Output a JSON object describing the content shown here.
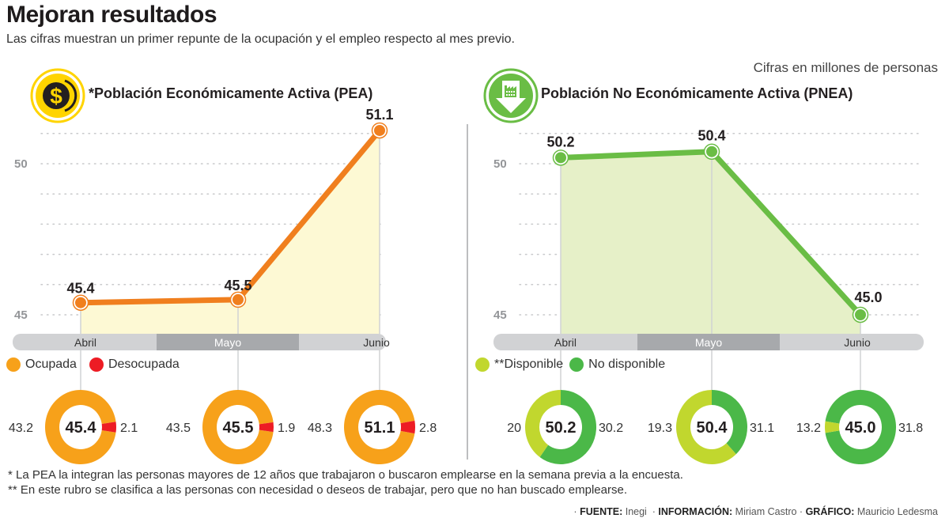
{
  "header": {
    "title": "Mejoran resultados",
    "subtitle": "Las cifras muestran un primer repunte de la ocupación y el empleo respecto al mes previo.",
    "units_note": "Cifras en millones de personas"
  },
  "chart_data": [
    {
      "type": "area",
      "id": "pea",
      "title": "*Población Económicamente Activa (PEA)",
      "icon": "dollar-coin-icon",
      "categories": [
        "Abril",
        "Mayo",
        "Junio"
      ],
      "values": [
        45.4,
        45.5,
        51.1
      ],
      "value_labels": [
        "45.4",
        "45.5",
        "51.1"
      ],
      "ylim": [
        45,
        51
      ],
      "yticks": [
        45,
        50
      ],
      "ytick_labels": [
        "45",
        "50"
      ],
      "grid": true,
      "line_color": "#f07f1e",
      "fill_color": "#fdf9d4",
      "highlighted_category": "Mayo"
    },
    {
      "type": "area",
      "id": "pnea",
      "title": "Población No Económicamente Activa (PNEA)",
      "icon": "factory-down-arrow-icon",
      "categories": [
        "Abril",
        "Mayo",
        "Junio"
      ],
      "values": [
        50.2,
        50.4,
        45.0
      ],
      "value_labels": [
        "50.2",
        "50.4",
        "45.0"
      ],
      "ylim": [
        45,
        51
      ],
      "yticks": [
        45,
        50
      ],
      "ytick_labels": [
        "45",
        "50"
      ],
      "grid": true,
      "line_color": "#6abd45",
      "fill_color": "#e6f0c8",
      "highlighted_category": "Mayo"
    },
    {
      "type": "pie",
      "id": "pea-donuts",
      "legend": [
        {
          "label": "Ocupada",
          "color": "#f7a11a"
        },
        {
          "label": "Desocupada",
          "color": "#ed1c24"
        }
      ],
      "donuts": [
        {
          "category": "Abril",
          "total": "45.4",
          "series": [
            {
              "name": "Ocupada",
              "value": 43.2,
              "label": "43.2"
            },
            {
              "name": "Desocupada",
              "value": 2.1,
              "label": "2.1"
            }
          ],
          "minor_fraction": 0.046
        },
        {
          "category": "Mayo",
          "total": "45.5",
          "series": [
            {
              "name": "Ocupada",
              "value": 43.5,
              "label": "43.5"
            },
            {
              "name": "Desocupada",
              "value": 1.9,
              "label": "1.9"
            }
          ],
          "minor_fraction": 0.042
        },
        {
          "category": "Junio",
          "total": "51.1",
          "series": [
            {
              "name": "Ocupada",
              "value": 48.3,
              "label": "48.3"
            },
            {
              "name": "Desocupada",
              "value": 2.8,
              "label": "2.8"
            }
          ],
          "minor_fraction": 0.055
        }
      ]
    },
    {
      "type": "pie",
      "id": "pnea-donuts",
      "legend": [
        {
          "label": "**Disponible",
          "color": "#c1d72e"
        },
        {
          "label": "No disponible",
          "color": "#4bb848"
        }
      ],
      "donuts": [
        {
          "category": "Abril",
          "total": "50.2",
          "series": [
            {
              "name": "Disponible",
              "value": 20,
              "label": "20"
            },
            {
              "name": "No disponible",
              "value": 30.2,
              "label": "30.2"
            }
          ],
          "major_fraction": 0.6
        },
        {
          "category": "Mayo",
          "total": "50.4",
          "series": [
            {
              "name": "Disponible",
              "value": 19.3,
              "label": "19.3"
            },
            {
              "name": "No disponible",
              "value": 31.1,
              "label": "31.1"
            }
          ],
          "major_fraction": 0.38
        },
        {
          "category": "Junio",
          "total": "45.0",
          "series": [
            {
              "name": "Disponible",
              "value": 13.2,
              "label": "13.2"
            },
            {
              "name": "No disponible",
              "value": 31.8,
              "label": "31.8"
            }
          ],
          "major_fraction": 0.95
        }
      ]
    }
  ],
  "footnotes": [
    "* La PEA la integran las personas mayores de 12 años que trabajaron o buscaron emplearse en la semana previa a la encuesta.",
    "** En este rubro se clasifica a las personas con necesidad o deseos de trabajar, pero que no han buscado emplearse."
  ],
  "credits": {
    "source_label": "FUENTE:",
    "source": "Inegi",
    "info_label": "INFORMACIÓN:",
    "info": "Miriam Castro",
    "graphic_label": "GRÁFICO:",
    "graphic": "Mauricio Ledesma"
  },
  "colors": {
    "axis_bar": "#d1d2d4",
    "axis_bar_highlight": "#a7a9ac",
    "grid": "#c8c9cb",
    "tick_text": "#939598"
  }
}
